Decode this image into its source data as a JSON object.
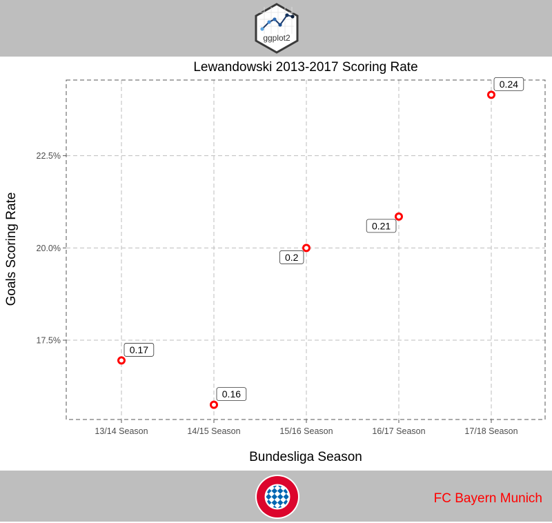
{
  "header": {
    "logo_text": "ggplot2"
  },
  "footer": {
    "club_name": "FC Bayern Munich",
    "badge_text": "FC BAYERN MÜNCHEN"
  },
  "colors": {
    "band": "#bebebe",
    "point": "#ff0000",
    "club_name": "#ff0000",
    "grid": "#bdbdbd"
  },
  "chart_data": {
    "type": "scatter",
    "title": "Lewandowski 2013-2017 Scoring Rate",
    "xlabel": "Bundesliga Season",
    "ylabel": "Goals Scoring Rate",
    "categories": [
      "13/14 Season",
      "14/15 Season",
      "15/16 Season",
      "16/17 Season",
      "17/18 Season"
    ],
    "values": [
      0.1695,
      0.1575,
      0.2,
      0.2085,
      0.2415
    ],
    "labels": [
      "0.17",
      "0.16",
      "0.2",
      "0.21",
      "0.24"
    ],
    "ylim": [
      0.1535,
      0.2455
    ],
    "yticks": [
      0.175,
      0.2,
      0.225
    ],
    "ytick_labels": [
      "17.5%",
      "20.0%",
      "22.5%"
    ],
    "grid": true,
    "legend": "none"
  }
}
